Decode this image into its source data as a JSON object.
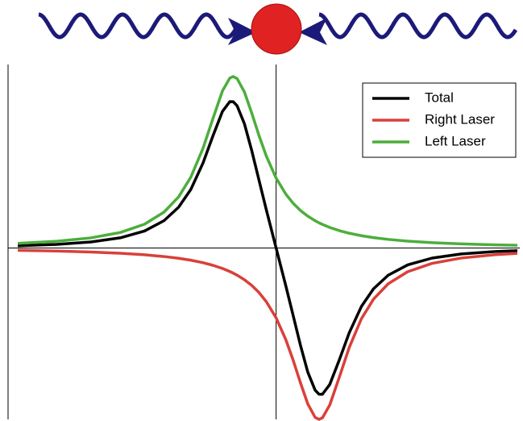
{
  "chart_data": {
    "type": "line",
    "x": [
      -5.3,
      -4.5,
      -3.8,
      -3.2,
      -2.7,
      -2.3,
      -2.0,
      -1.75,
      -1.5,
      -1.3,
      -1.1,
      -0.95,
      -0.88,
      -0.8,
      -0.65,
      -0.5,
      -0.35,
      -0.2,
      0,
      0.2,
      0.35,
      0.5,
      0.65,
      0.8,
      0.88,
      0.95,
      1.1,
      1.3,
      1.5,
      1.75,
      2.0,
      2.3,
      2.7,
      3.2,
      3.8,
      4.5,
      4.95
    ],
    "series": [
      {
        "name": "Total",
        "color": "#000000",
        "values": [
          0.0128,
          0.021,
          0.0351,
          0.0591,
          0.0987,
          0.1591,
          0.2378,
          0.3416,
          0.4951,
          0.6508,
          0.797,
          0.8536,
          0.8532,
          0.8293,
          0.7243,
          0.5681,
          0.3943,
          0.2217,
          0,
          -0.2217,
          -0.3943,
          -0.5681,
          -0.7243,
          -0.8293,
          -0.8532,
          -0.8536,
          -0.797,
          -0.6508,
          -0.4951,
          -0.3416,
          -0.2378,
          -0.1591,
          -0.0987,
          -0.0591,
          -0.0351,
          -0.021,
          -0.0158
        ]
      },
      {
        "name": "Right Laser",
        "color": "#d9403a",
        "values": [
          -0.0138,
          -0.0181,
          -0.0237,
          -0.031,
          -0.0399,
          -0.05,
          -0.0604,
          -0.0715,
          -0.086,
          -0.1008,
          -0.1197,
          -0.1373,
          -0.1468,
          -0.1588,
          -0.1854,
          -0.2187,
          -0.2605,
          -0.3137,
          -0.4076,
          -0.5354,
          -0.6548,
          -0.7868,
          -0.9097,
          -0.9881,
          -1,
          -0.9909,
          -0.9167,
          -0.7516,
          -0.5811,
          -0.4131,
          -0.2982,
          -0.2091,
          -0.1386,
          -0.0901,
          -0.0588,
          -0.0391,
          -0.0312
        ]
      },
      {
        "name": "Left Laser",
        "color": "#4cae3c",
        "values": [
          0.0266,
          0.0391,
          0.0588,
          0.0901,
          0.1386,
          0.2091,
          0.2982,
          0.4131,
          0.5811,
          0.7516,
          0.9167,
          0.9909,
          1,
          0.9881,
          0.9097,
          0.7868,
          0.6548,
          0.5354,
          0.4076,
          0.3137,
          0.2605,
          0.2187,
          0.1854,
          0.1588,
          0.1468,
          0.1373,
          0.1197,
          0.1008,
          0.086,
          0.0715,
          0.0604,
          0.05,
          0.0399,
          0.031,
          0.0237,
          0.0181,
          0.0154
        ]
      }
    ],
    "xlim": [
      -5.5,
      5
    ],
    "ylim": [
      -1,
      1.07
    ],
    "legend": "top-right"
  }
}
